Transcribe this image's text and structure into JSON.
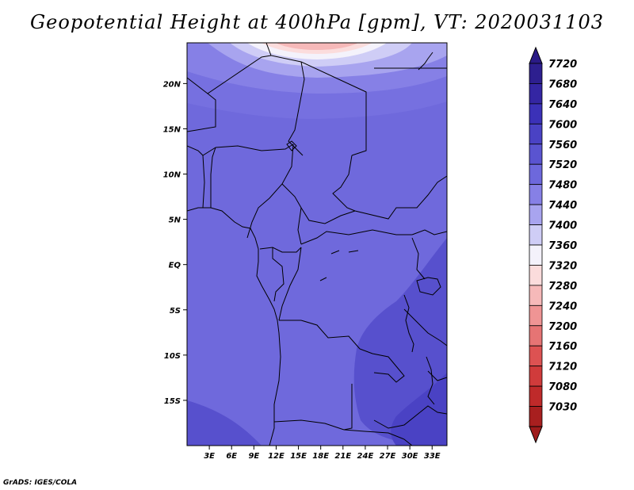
{
  "title": "Geopotential Height at 400hPa [gpm], VT: 2020031103",
  "credit": "GrADS: IGES/COLA",
  "map": {
    "lon_range": [
      0,
      35
    ],
    "lat_range": [
      -20,
      24.5
    ],
    "lat_ticks": [
      {
        "value": 20,
        "label": "20N"
      },
      {
        "value": 15,
        "label": "15N"
      },
      {
        "value": 10,
        "label": "10N"
      },
      {
        "value": 5,
        "label": "5N"
      },
      {
        "value": 0,
        "label": "EQ"
      },
      {
        "value": -5,
        "label": "5S"
      },
      {
        "value": -10,
        "label": "10S"
      },
      {
        "value": -15,
        "label": "15S"
      }
    ],
    "lon_ticks": [
      {
        "value": 3,
        "label": "3E"
      },
      {
        "value": 6,
        "label": "6E"
      },
      {
        "value": 9,
        "label": "9E"
      },
      {
        "value": 12,
        "label": "12E"
      },
      {
        "value": 15,
        "label": "15E"
      },
      {
        "value": 18,
        "label": "18E"
      },
      {
        "value": 21,
        "label": "21E"
      },
      {
        "value": 24,
        "label": "24E"
      },
      {
        "value": 27,
        "label": "27E"
      },
      {
        "value": 30,
        "label": "30E"
      },
      {
        "value": 33,
        "label": "33E"
      }
    ]
  },
  "colorbar": {
    "levels": [
      {
        "label": "7720",
        "color": "#2d1f8f"
      },
      {
        "label": "7680",
        "color": "#3426a3"
      },
      {
        "label": "7640",
        "color": "#3b31b8"
      },
      {
        "label": "7600",
        "color": "#4a42c4"
      },
      {
        "label": "7560",
        "color": "#5a54d0"
      },
      {
        "label": "7520",
        "color": "#6d68dc"
      },
      {
        "label": "7480",
        "color": "#8680e6"
      },
      {
        "label": "7440",
        "color": "#a8a4ef"
      },
      {
        "label": "7400",
        "color": "#cfcdf6"
      },
      {
        "label": "7360",
        "color": "#f4f2fb"
      },
      {
        "label": "7320",
        "color": "#fbdcdc"
      },
      {
        "label": "7280",
        "color": "#f6b9b9"
      },
      {
        "label": "7240",
        "color": "#ef9494"
      },
      {
        "label": "7200",
        "color": "#e67474"
      },
      {
        "label": "7160",
        "color": "#dd5252"
      },
      {
        "label": "7120",
        "color": "#d03b3b"
      },
      {
        "label": "7080",
        "color": "#bf2a2a"
      },
      {
        "label": "7030",
        "color": "#a81f1f"
      }
    ],
    "top_arrow_color": "#2a1a86",
    "bottom_arrow_color": "#9e1b1b"
  },
  "colors": {
    "base_field": "#6f69dc",
    "deep_field": "#4f47c8",
    "border": "#000000"
  }
}
